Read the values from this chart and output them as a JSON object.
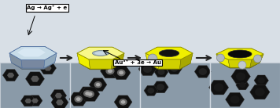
{
  "bg_color": "#d8dfe6",
  "box1_label": "Ag → Ag⁺ + e",
  "box2_label": "Au³⁺ + 3e → Au",
  "yellow": "#f0f000",
  "yellow_light": "#f8f888",
  "yellow_dark": "#a8a800",
  "yellow_side": "#d0d000",
  "silver_top": "#c8dce8",
  "silver_mid": "#a0b8c8",
  "silver_dark": "#6080a0",
  "silver_light": "#e0eef8",
  "figure_width": 3.56,
  "figure_height": 1.38,
  "dpi": 100
}
